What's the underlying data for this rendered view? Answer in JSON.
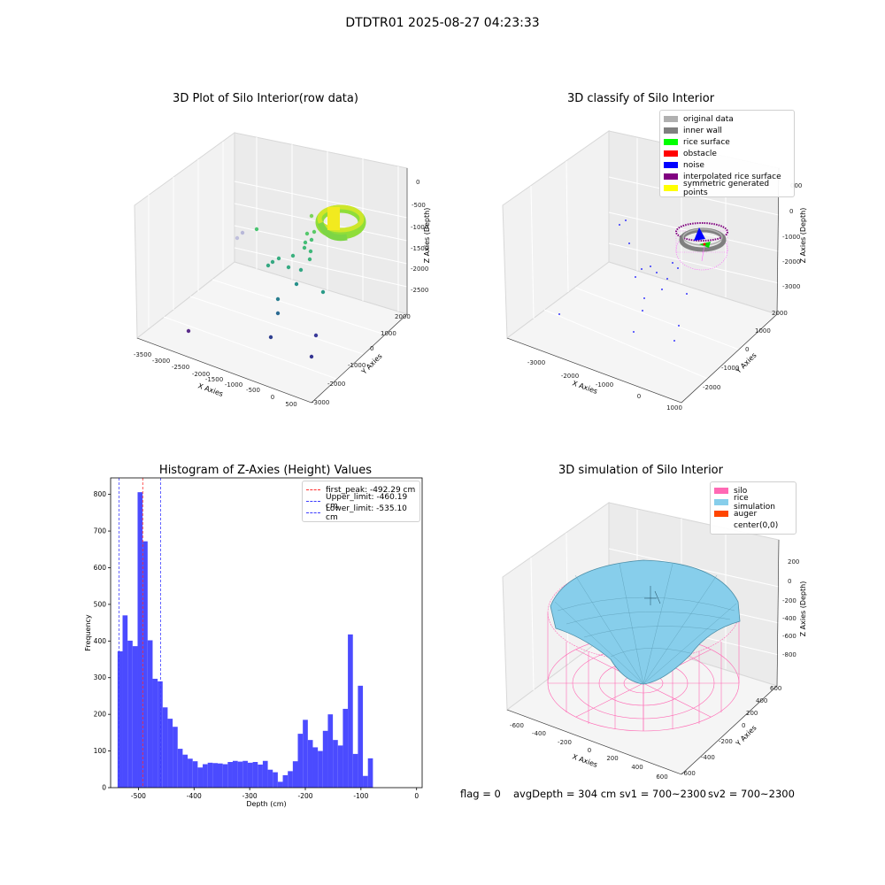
{
  "suptitle": "DTDTR01 2025-08-27 04:23:33",
  "footer": {
    "flag": "flag = 0",
    "avg": "avgDepth = 304 cm",
    "sv1": "sv1 = 700~2300",
    "sv2": "sv2 = 700~2300"
  },
  "chart_data": [
    {
      "type": "scatter",
      "title": "3D Plot of Silo Interior(row data)",
      "xlabel": "X Axies",
      "ylabel": "Y Axies",
      "zlabel": "Z Axies (Depth)",
      "x_ticks": [
        "-3500",
        "-3000",
        "-2500",
        "-2000",
        "-1500",
        "-1000",
        "-500",
        "0",
        "500"
      ],
      "y_ticks": [
        "-3000",
        "-2000",
        "-1000",
        "0",
        "1000",
        "2000"
      ],
      "z_ticks": [
        "0",
        "-500",
        "-1000",
        "-1500",
        "-2000",
        "-2500"
      ],
      "grid": true
    },
    {
      "type": "scatter",
      "title": "3D classify of Silo Interior",
      "xlabel": "X Axies",
      "ylabel": "Y Axies",
      "zlabel": "Z Axies (Depth)",
      "x_ticks": [
        "-3000",
        "-2000",
        "-1000",
        "0",
        "1000"
      ],
      "y_ticks": [
        "-2000",
        "-1000",
        "0",
        "1000",
        "2000"
      ],
      "z_ticks": [
        "000",
        "0",
        "-1000",
        "-2000",
        "-3000"
      ],
      "legend": [
        {
          "label": "original data",
          "color": "#b0b0b0"
        },
        {
          "label": "inner wall",
          "color": "#808080"
        },
        {
          "label": "rice surface",
          "color": "#00ff00"
        },
        {
          "label": "obstacle",
          "color": "#ff0000"
        },
        {
          "label": "noise",
          "color": "#0000ff"
        },
        {
          "label": "interpolated rice surface",
          "color": "#800080"
        },
        {
          "label": "symmetric generated points",
          "color": "#ffff00"
        }
      ],
      "legend_position": "top-right",
      "grid": true
    },
    {
      "type": "bar",
      "title": "Histogram of Z-Axies (Height) Values",
      "xlabel": "Depth (cm)",
      "ylabel": "Frequency",
      "xlim": [
        -550,
        10
      ],
      "ylim": [
        0,
        845
      ],
      "x_ticks": [
        -500,
        -400,
        -300,
        -200,
        -100,
        0
      ],
      "y_ticks": [
        0,
        100,
        200,
        300,
        400,
        500,
        600,
        700,
        800
      ],
      "bin_start": -537.5,
      "bin_width": 9.0,
      "values": [
        372,
        470,
        401,
        386,
        806,
        672,
        402,
        297,
        290,
        219,
        188,
        166,
        106,
        90,
        79,
        72,
        55,
        64,
        68,
        67,
        66,
        64,
        70,
        73,
        71,
        73,
        68,
        70,
        63,
        73,
        49,
        42,
        16,
        34,
        45,
        72,
        147,
        185,
        130,
        110,
        100,
        155,
        200,
        130,
        115,
        215,
        418,
        92,
        278,
        32,
        80
      ],
      "bar_color": "#4b4bff",
      "vlines": [
        {
          "x": -492.29,
          "label": "first_peak: -492.29 cm",
          "color": "#ff2d2d"
        },
        {
          "x": -460.19,
          "label": "Upper_limit: -460.19 cm",
          "color": "#3c3cff"
        },
        {
          "x": -535.1,
          "label": "Lower_limit: -535.10 cm",
          "color": "#3c3cff"
        }
      ],
      "legend_position": "top-right"
    },
    {
      "type": "area",
      "title": "3D simulation of Silo Interior",
      "xlabel": "X Axies",
      "ylabel": "Y Axies",
      "zlabel": "Z Axies (Depth)",
      "x_ticks": [
        "-600",
        "-400",
        "-200",
        "0",
        "200",
        "400",
        "600"
      ],
      "y_ticks": [
        "-600",
        "-400",
        "-200",
        "0",
        "200",
        "400",
        "600"
      ],
      "z_ticks": [
        "200",
        "0",
        "-200",
        "-400",
        "-600",
        "-800"
      ],
      "legend": [
        {
          "label": "silo",
          "color": "#ff69b4"
        },
        {
          "label": "rice simulation",
          "color": "#87ceeb"
        },
        {
          "label": "auger",
          "color": "#ff4500"
        },
        {
          "label": "center(0,0)",
          "color": ""
        }
      ],
      "legend_position": "top-right",
      "grid": true
    }
  ]
}
